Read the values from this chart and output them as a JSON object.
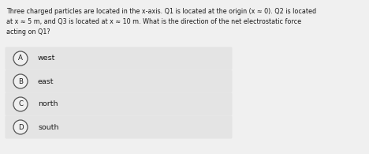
{
  "question_lines": [
    "Three charged particles are located in the x-axis. Q1 is located at the origin (x ≈ 0). Q2 is located",
    "at x ≈ 5 m, and Q3 is located at x ≈ 10 m. What is the direction of the net electrostatic force",
    "acting on Q1?"
  ],
  "options": [
    {
      "label": "A",
      "text": "west"
    },
    {
      "label": "B",
      "text": "east"
    },
    {
      "label": "C",
      "text": "north"
    },
    {
      "label": "D",
      "text": "south"
    }
  ],
  "bg_color": "#f0f0f0",
  "option_bg_color": "#e4e4e4",
  "text_color": "#1a1a1a",
  "circle_edge_color": "#555555",
  "circle_fill_color": "#f0f0f0",
  "question_fontsize": 5.8,
  "option_fontsize": 6.8,
  "label_fontsize": 6.2,
  "fig_width": 4.68,
  "fig_height": 1.95,
  "dpi": 100
}
